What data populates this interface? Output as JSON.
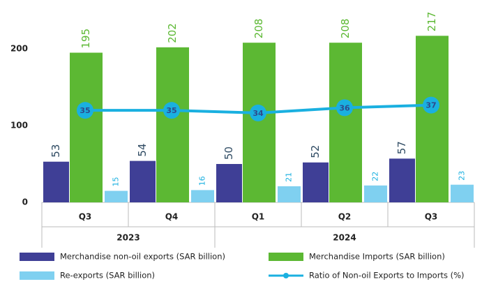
{
  "chart_data": {
    "type": "bar",
    "groups": [
      {
        "name": "2023",
        "categories": [
          "Q3",
          "Q4"
        ]
      },
      {
        "name": "2024",
        "categories": [
          "Q1",
          "Q2",
          "Q3"
        ]
      }
    ],
    "ylim": [
      0,
      250
    ],
    "yticks": [
      0,
      100,
      200
    ],
    "y2lim": [
      0,
      73
    ],
    "grid": false,
    "series": [
      {
        "name": "Merchandise non-oil exports (SAR billion)",
        "type": "bar",
        "color": "#3f3f96",
        "label_color": "#2e4a62",
        "values": [
          53,
          54,
          50,
          52,
          57
        ]
      },
      {
        "name": "Merchandise Imports (SAR billion)",
        "type": "bar",
        "color": "#5cb833",
        "label_color": "#5cb833",
        "values": [
          195,
          202,
          208,
          208,
          217
        ]
      },
      {
        "name": "Re-exports (SAR billion)",
        "type": "bar",
        "color": "#7fd0f0",
        "label_color": "#1ab0e0",
        "values": [
          15,
          16,
          21,
          22,
          23
        ]
      },
      {
        "name": "Ratio of Non-oil Exports to Imports (%)",
        "type": "line",
        "axis": "y2",
        "color": "#1ab0e0",
        "label_color": "#2e4a8c",
        "values": [
          35,
          35,
          34,
          36,
          37
        ]
      }
    ]
  }
}
